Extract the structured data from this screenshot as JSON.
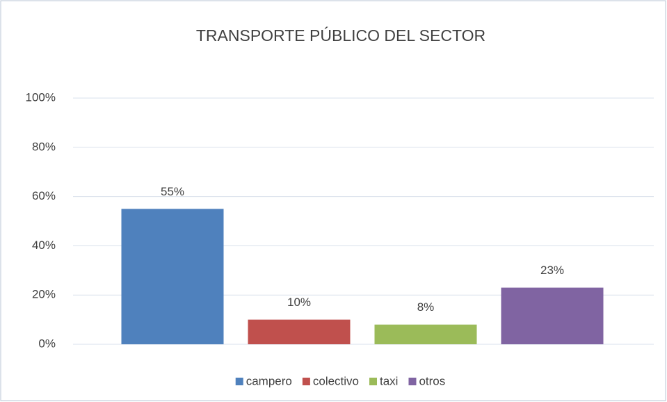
{
  "chart_data": {
    "type": "bar",
    "title": "TRANSPORTE PÚBLICO DEL SECTOR",
    "categories": [
      "campero",
      "colectivo",
      "taxi",
      "otros"
    ],
    "values": [
      55,
      10,
      8,
      23
    ],
    "value_labels": [
      "55%",
      "10%",
      "8%",
      "23%"
    ],
    "colors": [
      "#4f81bd",
      "#c0504d",
      "#9bbb59",
      "#8064a2"
    ],
    "ylim": [
      0,
      100
    ],
    "yticks": [
      {
        "value": 0,
        "label": "0%"
      },
      {
        "value": 20,
        "label": "20%"
      },
      {
        "value": 40,
        "label": "40%"
      },
      {
        "value": 60,
        "label": "60%"
      },
      {
        "value": 80,
        "label": "80%"
      },
      {
        "value": 100,
        "label": "100%"
      }
    ],
    "grid": true,
    "legend": "bottom"
  }
}
